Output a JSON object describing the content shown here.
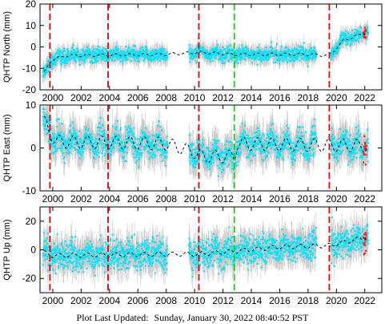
{
  "chart_data": [
    {
      "type": "scatter",
      "ylabel": "QHTP North (mm)",
      "ylim": [
        -20,
        20
      ],
      "yticks": [
        -20,
        -10,
        0,
        10,
        20
      ],
      "xlim": [
        1999.1,
        2023.2
      ],
      "xticks": [
        2000,
        2002,
        2004,
        2006,
        2008,
        2010,
        2012,
        2014,
        2016,
        2018,
        2020,
        2022
      ],
      "grid": false,
      "annual_amplitude": 0.6,
      "scatter_sd": 1.6,
      "error_bar": 3.0,
      "model_trend": [
        {
          "x": 1999.4,
          "y": -12
        },
        {
          "x": 1999.9,
          "y": -6
        },
        {
          "x": 2001,
          "y": -4
        },
        {
          "x": 2008,
          "y": -3.5
        },
        {
          "x": 2010.3,
          "y": -2.5
        },
        {
          "x": 2012.8,
          "y": -3.5
        },
        {
          "x": 2018,
          "y": -3.5
        },
        {
          "x": 2019.5,
          "y": -4
        },
        {
          "x": 2020.5,
          "y": 3
        },
        {
          "x": 2022.2,
          "y": 7
        }
      ],
      "offsets": [
        {
          "x": 1999.8,
          "type": "equipment"
        },
        {
          "x": 2003.9,
          "type": "equipment"
        },
        {
          "x": 2010.3,
          "type": "equipment"
        },
        {
          "x": 2012.8,
          "type": "earthquake"
        },
        {
          "x": 2019.5,
          "type": "equipment"
        }
      ]
    },
    {
      "type": "scatter",
      "ylabel": "QHTP East (mm)",
      "ylim": [
        -10,
        10
      ],
      "yticks": [
        -10,
        0,
        10
      ],
      "xlim": [
        1999.1,
        2023.2
      ],
      "xticks": [
        2000,
        2002,
        2004,
        2006,
        2008,
        2010,
        2012,
        2014,
        2016,
        2018,
        2020,
        2022
      ],
      "grid": false,
      "annual_amplitude": 1.5,
      "scatter_sd": 1.5,
      "error_bar": 3.0,
      "model_trend": [
        {
          "x": 1999.4,
          "y": 6
        },
        {
          "x": 2000.2,
          "y": 1.5
        },
        {
          "x": 2008,
          "y": 1
        },
        {
          "x": 2010,
          "y": -1
        },
        {
          "x": 2010.5,
          "y": -2
        },
        {
          "x": 2012.8,
          "y": -2
        },
        {
          "x": 2013,
          "y": 1
        },
        {
          "x": 2022.2,
          "y": 0.5
        }
      ],
      "offsets": [
        {
          "x": 1999.8,
          "type": "equipment"
        },
        {
          "x": 2003.9,
          "type": "equipment"
        },
        {
          "x": 2010.3,
          "type": "equipment"
        },
        {
          "x": 2012.8,
          "type": "earthquake"
        },
        {
          "x": 2019.5,
          "type": "equipment"
        }
      ]
    },
    {
      "type": "scatter",
      "ylabel": "QHTP Up (mm)",
      "ylim": [
        -30,
        30
      ],
      "yticks": [
        -20,
        0,
        20
      ],
      "xlim": [
        1999.1,
        2023.2
      ],
      "xticks": [
        2000,
        2002,
        2004,
        2006,
        2008,
        2010,
        2012,
        2014,
        2016,
        2018,
        2020,
        2022
      ],
      "xticklabels": [
        "2000",
        "2002",
        "2004",
        "2006",
        "2008",
        "2010",
        "2012",
        "2014",
        "2016",
        "2018",
        "2020",
        "2022"
      ],
      "grid": false,
      "annual_amplitude": 1.5,
      "scatter_sd": 5,
      "error_bar": 8,
      "model_trend": [
        {
          "x": 1999.4,
          "y": -2
        },
        {
          "x": 2000,
          "y": -4
        },
        {
          "x": 2008,
          "y": -3
        },
        {
          "x": 2010.3,
          "y": -3
        },
        {
          "x": 2012.8,
          "y": -1
        },
        {
          "x": 2016,
          "y": 2
        },
        {
          "x": 2019.5,
          "y": 3
        },
        {
          "x": 2022.2,
          "y": 9
        }
      ],
      "offsets": [
        {
          "x": 1999.8,
          "type": "equipment"
        },
        {
          "x": 2003.9,
          "type": "equipment"
        },
        {
          "x": 2010.3,
          "type": "equipment"
        },
        {
          "x": 2012.8,
          "type": "earthquake"
        },
        {
          "x": 2019.5,
          "type": "equipment"
        }
      ]
    }
  ],
  "data_segments": [
    {
      "start": 1999.3,
      "end": 2008.1
    },
    {
      "start": 2009.6,
      "end": 2010.45
    },
    {
      "start": 2010.5,
      "end": 2018.6
    },
    {
      "start": 2019.6,
      "end": 2022.25
    }
  ],
  "recent_highlight": {
    "start": 2021.9,
    "end": 2022.1
  },
  "colors": {
    "points": "#00e5ff",
    "error_bars": "#b3b3b3",
    "model": "#000000",
    "equipment_offset": "#e00000",
    "earthquake_offset": "#1fc81f",
    "recent_points": "#ff1a1a"
  },
  "footer": {
    "label": "Plot Last Updated:",
    "timestamp": "Sunday, January 30, 2022 08:40:52 PST"
  }
}
